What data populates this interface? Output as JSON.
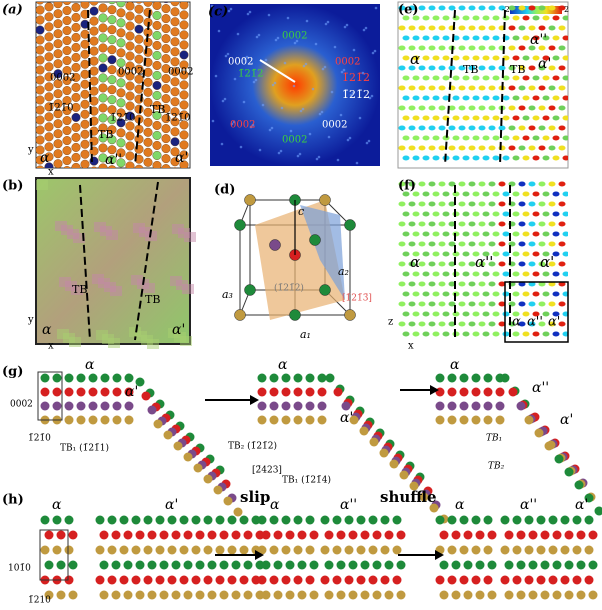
{
  "a": [
    "(a)",
    "0002",
    "0002",
    "0002",
    "1̄21̄0",
    "1̄21̄0",
    "1̄21̄0",
    "TB",
    "TB",
    "α",
    "α''",
    "α'",
    "y",
    "x"
  ],
  "b": [
    "(b)",
    "TB",
    "TB",
    "α",
    "α'",
    "y",
    "x"
  ],
  "c": [
    "(c)",
    "0002",
    "0002",
    "1̄21̄2",
    "0002",
    "1̄21̄2",
    "1̄21̄2",
    "0002",
    "0002",
    "0002"
  ],
  "d": [
    "(d)",
    "c",
    "a₂",
    "a₃",
    "a₁",
    "(1̄21̄2)",
    "[1̄21̄3̄]"
  ],
  "e": [
    "(e)",
    "-2",
    "2",
    "α",
    "TB",
    "TB",
    "α''",
    "α'"
  ],
  "f": [
    "(f)",
    "α",
    "α''",
    "α'",
    "α",
    "α''",
    "α'",
    "z",
    "x"
  ],
  "g": [
    "(g)",
    "α",
    "α'",
    "0002",
    "1̄21̄0",
    "TB₁ (1̄21̄1)",
    "TB₂ (1̄21̄2)",
    "[2̄423]",
    "TB₁ (1̄21̄4)",
    "α",
    "α'",
    "α",
    "α''",
    "α'",
    "TB₁",
    "TB₂"
  ],
  "h": [
    "(h)",
    "α",
    "α'",
    "slip",
    "α",
    "α''",
    "shuffle",
    "α",
    "α''",
    "α'",
    "101̄0",
    "1̄210"
  ]
}
